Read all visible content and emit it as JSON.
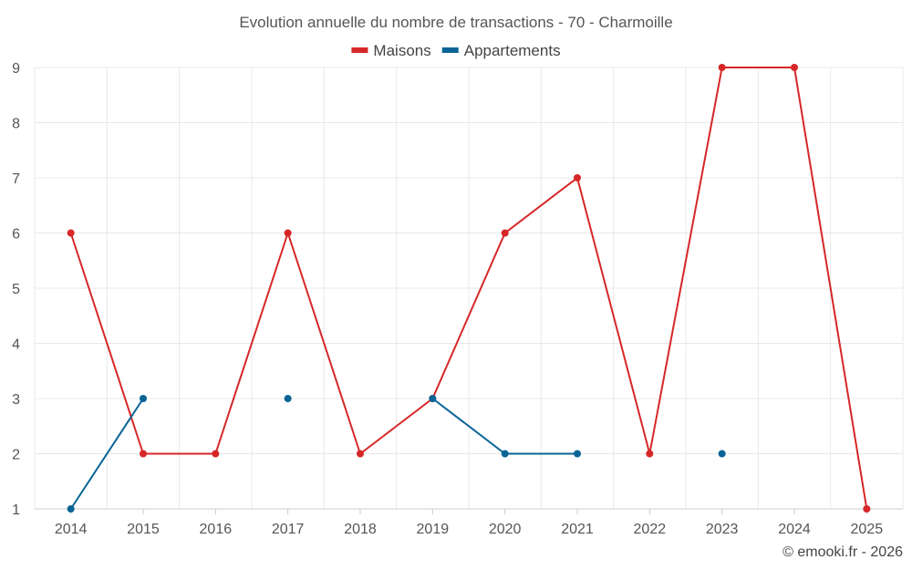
{
  "chart_data": {
    "type": "line",
    "title": "Evolution annuelle du nombre de transactions - 70 - Charmoille",
    "categories": [
      "2014",
      "2015",
      "2016",
      "2017",
      "2018",
      "2019",
      "2020",
      "2021",
      "2022",
      "2023",
      "2024",
      "2025"
    ],
    "ylim": [
      1,
      9
    ],
    "yticks": [
      1,
      2,
      3,
      4,
      5,
      6,
      7,
      8,
      9
    ],
    "grid": true,
    "legend_position": "top-center",
    "series": [
      {
        "name": "Maisons",
        "color": "#d62728",
        "values": [
          6,
          2,
          2,
          6,
          2,
          3,
          6,
          7,
          2,
          9,
          9,
          1
        ]
      },
      {
        "name": "Appartements",
        "color": "#0a6496",
        "values": [
          1,
          3,
          null,
          3,
          null,
          3,
          2,
          2,
          null,
          2,
          null,
          null
        ]
      }
    ]
  },
  "credit": "© emooki.fr - 2026"
}
